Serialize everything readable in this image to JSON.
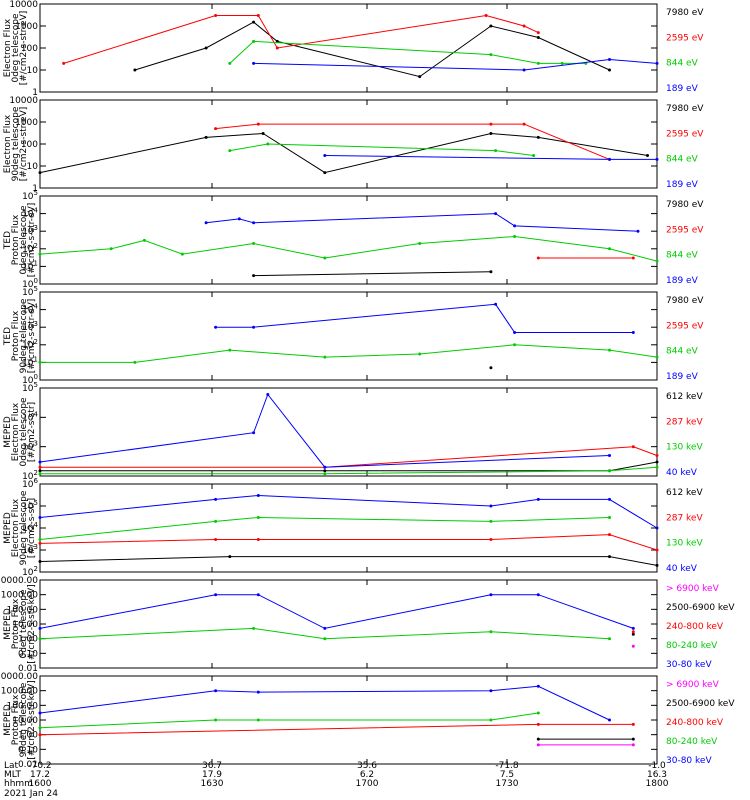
{
  "chart_data": [
    {
      "type": "line",
      "ylabel_lines": [
        "Electron Flux",
        "0deg telescope",
        "[#/cm2-s-str-eV]"
      ],
      "yscale": "log",
      "ylim": [
        1,
        10000
      ],
      "yticks": [
        "10000",
        "1000",
        "100",
        "10",
        "1"
      ],
      "series": [
        {
          "name": "7980 eV",
          "color": "#000000",
          "points": [
            [
              1620,
              10
            ],
            [
              1635,
              100
            ],
            [
              1645,
              1500
            ],
            [
              1650,
              200
            ],
            [
              1720,
              5
            ],
            [
              1735,
              1000
            ],
            [
              1745,
              300
            ],
            [
              1800,
              10
            ]
          ]
        },
        {
          "name": "2595 eV",
          "color": "#ff0000",
          "points": [
            [
              1605,
              20
            ],
            [
              1637,
              3000
            ],
            [
              1646,
              3000
            ],
            [
              1650,
              100
            ],
            [
              1734,
              3000
            ],
            [
              1742,
              1000
            ],
            [
              1745,
              500
            ]
          ]
        },
        {
          "name": "844 eV",
          "color": "#00cc00",
          "points": [
            [
              1640,
              20
            ],
            [
              1645,
              200
            ],
            [
              1735,
              50
            ],
            [
              1745,
              20
            ],
            [
              1750,
              20
            ],
            [
              1755,
              20
            ]
          ]
        },
        {
          "name": "189 eV",
          "color": "#0000ff",
          "points": [
            [
              1645,
              20
            ],
            [
              1742,
              10
            ],
            [
              1800,
              30
            ],
            [
              1810,
              20
            ]
          ]
        }
      ]
    },
    {
      "type": "line",
      "ylabel_lines": [
        "Electron Flux",
        "90deg telescope",
        "[#/cm2-s-str-eV]"
      ],
      "yscale": "log",
      "ylim": [
        1,
        10000
      ],
      "yticks": [
        "10000",
        "1000",
        "100",
        "10",
        "1"
      ],
      "series": [
        {
          "name": "7980 eV",
          "color": "#000000",
          "points": [
            [
              1600,
              5
            ],
            [
              1635,
              200
            ],
            [
              1647,
              300
            ],
            [
              1700,
              5
            ],
            [
              1735,
              300
            ],
            [
              1745,
              200
            ],
            [
              1808,
              30
            ]
          ]
        },
        {
          "name": "2595 eV",
          "color": "#ff0000",
          "points": [
            [
              1637,
              500
            ],
            [
              1646,
              800
            ],
            [
              1735,
              800
            ],
            [
              1742,
              800
            ],
            [
              1800,
              20
            ]
          ]
        },
        {
          "name": "844 eV",
          "color": "#00cc00",
          "points": [
            [
              1640,
              50
            ],
            [
              1648,
              100
            ],
            [
              1736,
              50
            ],
            [
              1744,
              30
            ]
          ]
        },
        {
          "name": "189 eV",
          "color": "#0000ff",
          "points": [
            [
              1700,
              30
            ],
            [
              1800,
              20
            ],
            [
              1810,
              20
            ]
          ]
        }
      ]
    },
    {
      "type": "line",
      "ylabel_lines": [
        "TED",
        "Proton Flux",
        "0deg telescope",
        "[#/cm2-s-str-eV]"
      ],
      "yscale": "log",
      "ylim": [
        1,
        100000
      ],
      "yticks": [
        "10^5",
        "10^4",
        "10^3",
        "10^2",
        "10^1",
        "10^0"
      ],
      "series": [
        {
          "name": "7980 eV",
          "color": "#000000",
          "points": [
            [
              1645,
              3
            ],
            [
              1735,
              5
            ]
          ]
        },
        {
          "name": "2595 eV",
          "color": "#ff0000",
          "points": [
            [
              1745,
              30
            ],
            [
              1805,
              30
            ]
          ]
        },
        {
          "name": "844 eV",
          "color": "#00cc00",
          "points": [
            [
              1600,
              50
            ],
            [
              1615,
              100
            ],
            [
              1622,
              300
            ],
            [
              1630,
              50
            ],
            [
              1645,
              200
            ],
            [
              1700,
              30
            ],
            [
              1720,
              200
            ],
            [
              1740,
              500
            ],
            [
              1800,
              100
            ],
            [
              1810,
              20
            ]
          ]
        },
        {
          "name": "189 eV",
          "color": "#0000ff",
          "points": [
            [
              1635,
              3000
            ],
            [
              1642,
              5000
            ],
            [
              1645,
              3000
            ],
            [
              1736,
              10000
            ],
            [
              1740,
              2000
            ],
            [
              1806,
              1000
            ]
          ]
        }
      ]
    },
    {
      "type": "line",
      "ylabel_lines": [
        "TED",
        "Proton Flux",
        "90deg telescope",
        "[#/cm2-s-str-eV]"
      ],
      "yscale": "log",
      "ylim": [
        1,
        100000
      ],
      "yticks": [
        "10^5",
        "10^4",
        "10^3",
        "10^2",
        "10^1",
        "10^0"
      ],
      "series": [
        {
          "name": "7980 eV",
          "color": "#000000",
          "points": [
            [
              1735,
              5
            ]
          ]
        },
        {
          "name": "2595 eV",
          "color": "#ff0000",
          "points": []
        },
        {
          "name": "844 eV",
          "color": "#00cc00",
          "points": [
            [
              1600,
              10
            ],
            [
              1620,
              10
            ],
            [
              1640,
              50
            ],
            [
              1700,
              20
            ],
            [
              1720,
              30
            ],
            [
              1740,
              100
            ],
            [
              1800,
              50
            ],
            [
              1810,
              20
            ]
          ]
        },
        {
          "name": "189 eV",
          "color": "#0000ff",
          "points": [
            [
              1637,
              1000
            ],
            [
              1645,
              1000
            ],
            [
              1736,
              20000
            ],
            [
              1740,
              500
            ],
            [
              1805,
              500
            ]
          ]
        }
      ]
    },
    {
      "type": "line",
      "ylabel_lines": [
        "MEPED",
        "Electron Flux",
        "0deg telescope",
        "[#/cm2-s-str]"
      ],
      "yscale": "log",
      "ylim": [
        100,
        100000
      ],
      "yticks": [
        "10^5",
        "10^4",
        "10^3",
        "10^2"
      ],
      "series": [
        {
          "name": "612 keV",
          "color": "#000000",
          "points": [
            [
              1600,
              150
            ],
            [
              1700,
              150
            ],
            [
              1800,
              150
            ],
            [
              1810,
              300
            ]
          ]
        },
        {
          "name": "287 keV",
          "color": "#ff0000",
          "points": [
            [
              1600,
              200
            ],
            [
              1700,
              200
            ],
            [
              1805,
              1000
            ],
            [
              1810,
              500
            ]
          ]
        },
        {
          "name": "130 keV",
          "color": "#00cc00",
          "points": [
            [
              1600,
              120
            ],
            [
              1700,
              120
            ],
            [
              1800,
              150
            ],
            [
              1810,
              200
            ]
          ]
        },
        {
          "name": "40 keV",
          "color": "#0000ff",
          "points": [
            [
              1600,
              300
            ],
            [
              1645,
              3000
            ],
            [
              1648,
              60000
            ],
            [
              1700,
              200
            ],
            [
              1800,
              500
            ]
          ]
        }
      ]
    },
    {
      "type": "line",
      "ylabel_lines": [
        "MEPED",
        "Electron Flux",
        "90deg telescope",
        "[#/cm2-s-str]"
      ],
      "yscale": "log",
      "ylim": [
        100,
        1000000
      ],
      "yticks": [
        "10^6",
        "10^5",
        "10^4",
        "10^3",
        "10^2"
      ],
      "series": [
        {
          "name": "612 keV",
          "color": "#000000",
          "points": [
            [
              1600,
              300
            ],
            [
              1640,
              500
            ],
            [
              1800,
              500
            ],
            [
              1810,
              200
            ]
          ]
        },
        {
          "name": "287 keV",
          "color": "#ff0000",
          "points": [
            [
              1600,
              2000
            ],
            [
              1637,
              3000
            ],
            [
              1646,
              3000
            ],
            [
              1735,
              3000
            ],
            [
              1800,
              5000
            ],
            [
              1810,
              1000
            ]
          ]
        },
        {
          "name": "130 keV",
          "color": "#00cc00",
          "points": [
            [
              1600,
              3000
            ],
            [
              1637,
              20000
            ],
            [
              1646,
              30000
            ],
            [
              1735,
              20000
            ],
            [
              1800,
              30000
            ]
          ]
        },
        {
          "name": "40 keV",
          "color": "#0000ff",
          "points": [
            [
              1600,
              30000
            ],
            [
              1637,
              200000
            ],
            [
              1646,
              300000
            ],
            [
              1735,
              100000
            ],
            [
              1745,
              200000
            ],
            [
              1800,
              200000
            ],
            [
              1810,
              10000
            ]
          ]
        }
      ]
    },
    {
      "type": "line",
      "ylabel_lines": [
        "MEPED",
        "Proton Flux",
        "0deg telescope",
        "[#/cm2-s-str-keV]"
      ],
      "yscale": "log",
      "ylim": [
        0.01,
        10000
      ],
      "yticks": [
        "10000.00",
        "1000.00",
        "100.00",
        "10.00",
        "1.00",
        "0.10",
        "0.01"
      ],
      "series": [
        {
          "name": "> 6900 keV",
          "color": "#ff00ff",
          "points": [
            [
              1805,
              0.3
            ]
          ]
        },
        {
          "name": "2500-6900 keV",
          "color": "#000000",
          "points": [
            [
              1805,
              2
            ]
          ]
        },
        {
          "name": "240-800 keV",
          "color": "#ff0000",
          "points": [
            [
              1805,
              3
            ]
          ]
        },
        {
          "name": "80-240 keV",
          "color": "#00cc00",
          "points": [
            [
              1600,
              1
            ],
            [
              1645,
              5
            ],
            [
              1700,
              1
            ],
            [
              1735,
              3
            ],
            [
              1800,
              1
            ]
          ]
        },
        {
          "name": "30-80 keV",
          "color": "#0000ff",
          "points": [
            [
              1600,
              5
            ],
            [
              1637,
              1000
            ],
            [
              1646,
              1000
            ],
            [
              1700,
              5
            ],
            [
              1735,
              1000
            ],
            [
              1745,
              1000
            ],
            [
              1805,
              5
            ]
          ]
        }
      ]
    },
    {
      "type": "line",
      "ylabel_lines": [
        "MEPED",
        "Proton Flux",
        "90deg telescope",
        "[#/cm2-s-str-keV]"
      ],
      "yscale": "log",
      "ylim": [
        0.01,
        10000
      ],
      "yticks": [
        "10000.00",
        "1000.00",
        "100.00",
        "10.00",
        "1.00",
        "0.10",
        "0.01"
      ],
      "series": [
        {
          "name": "> 6900 keV",
          "color": "#ff00ff",
          "points": [
            [
              1745,
              0.2
            ],
            [
              1805,
              0.2
            ]
          ]
        },
        {
          "name": "2500-6900 keV",
          "color": "#000000",
          "points": [
            [
              1745,
              0.5
            ],
            [
              1805,
              0.5
            ]
          ]
        },
        {
          "name": "240-800 keV",
          "color": "#ff0000",
          "points": [
            [
              1600,
              1
            ],
            [
              1745,
              5
            ],
            [
              1805,
              5
            ]
          ]
        },
        {
          "name": "80-240 keV",
          "color": "#00cc00",
          "points": [
            [
              1600,
              3
            ],
            [
              1637,
              10
            ],
            [
              1646,
              10
            ],
            [
              1735,
              10
            ],
            [
              1745,
              30
            ]
          ]
        },
        {
          "name": "30-80 keV",
          "color": "#0000ff",
          "points": [
            [
              1600,
              30
            ],
            [
              1637,
              1000
            ],
            [
              1646,
              800
            ],
            [
              1735,
              1000
            ],
            [
              1745,
              2000
            ],
            [
              1800,
              10
            ]
          ]
        }
      ]
    }
  ],
  "x_axis": {
    "row_labels": [
      "Lat",
      "MLT",
      "hhmm"
    ],
    "ticks": [
      {
        "lat": "-70.2",
        "mlt": "17.2",
        "hhmm": "1600"
      },
      {
        "lat": "36.7",
        "mlt": "17.9",
        "hhmm": "1630"
      },
      {
        "lat": "35.6",
        "mlt": "6.2",
        "hhmm": "1700"
      },
      {
        "lat": "-71.8",
        "mlt": "7.5",
        "hhmm": "1730"
      },
      {
        "lat": "-1.0",
        "mlt": "16.3",
        "hhmm": "1800"
      }
    ],
    "date": "2021 Jan 24"
  }
}
